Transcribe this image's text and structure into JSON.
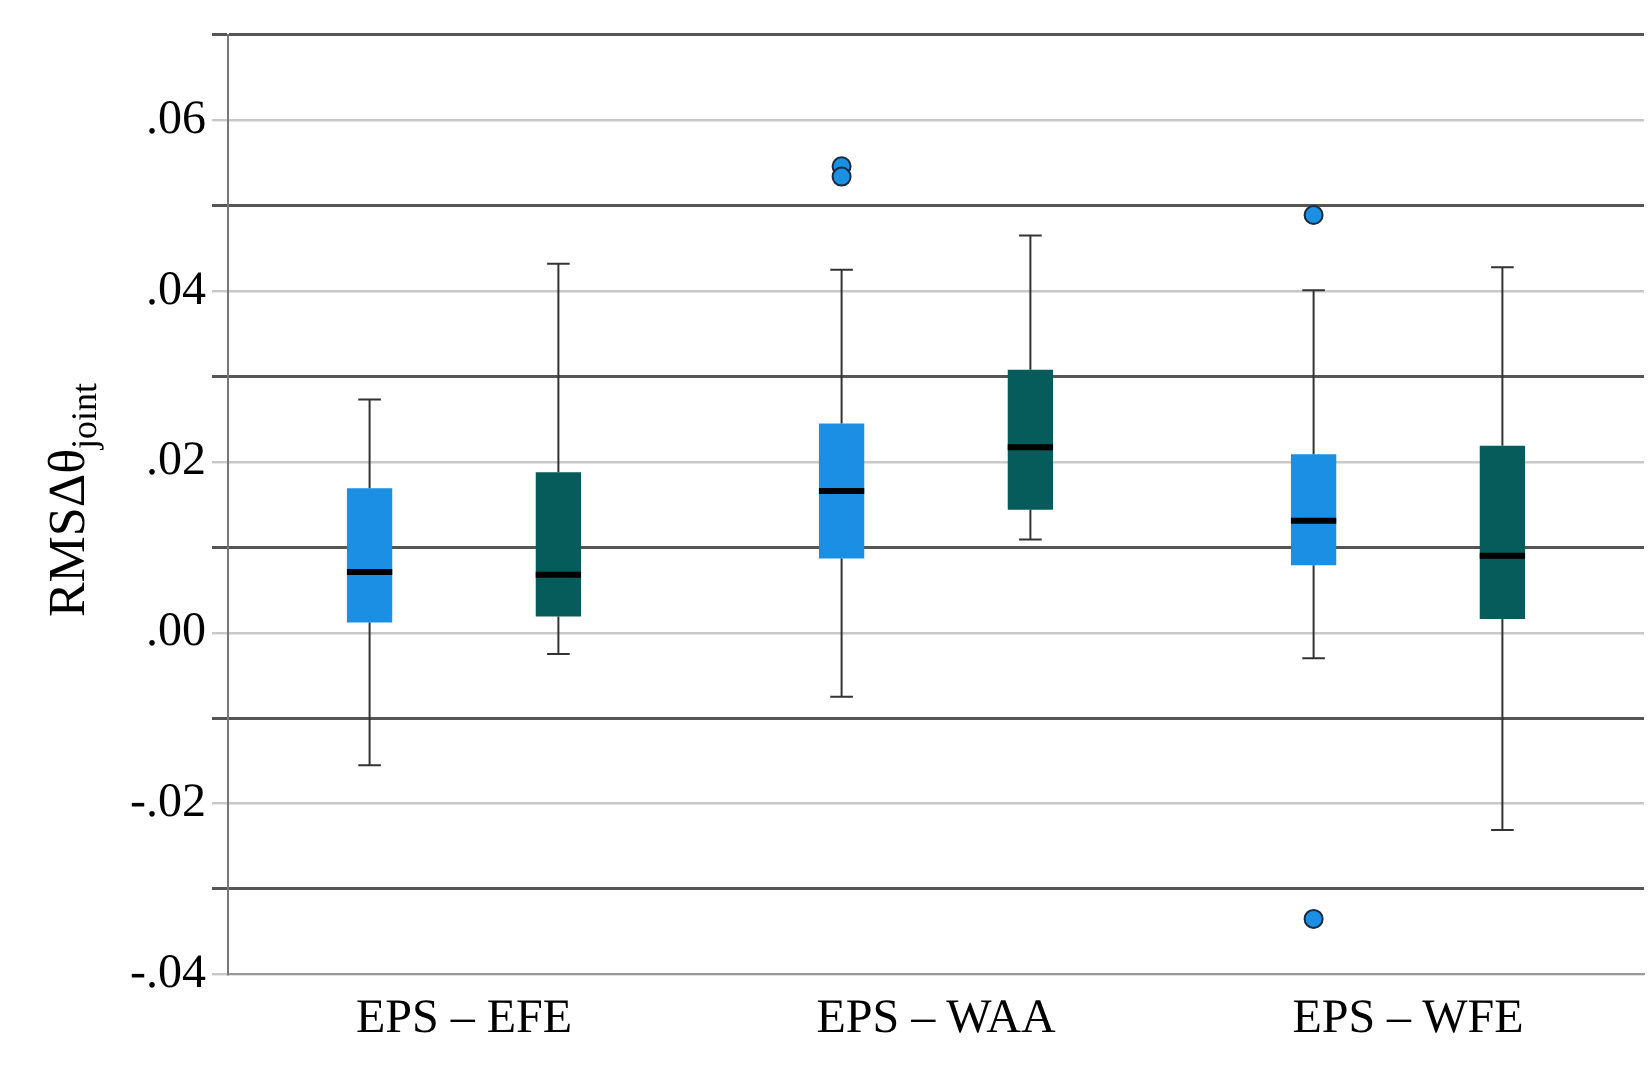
{
  "chart_data": {
    "type": "box",
    "ylabel": "RMSΔθ$_{joint}$",
    "categories": [
      "EPS – EFE",
      "EPS – WAA",
      "EPS – WFE"
    ],
    "series": [
      {
        "color": "#1a8fe3",
        "boxes": [
          {
            "low": -0.0155,
            "q1": 0.0012,
            "median": 0.0071,
            "q3": 0.0169,
            "high": 0.0273
          },
          {
            "low": -0.0075,
            "q1": 0.0087,
            "median": 0.0166,
            "q3": 0.0245,
            "high": 0.0425,
            "outliers": [
              0.0546,
              0.0534
            ]
          },
          {
            "low": -0.003,
            "q1": 0.0079,
            "median": 0.0131,
            "q3": 0.0209,
            "high": 0.0401,
            "outliers": [
              0.0489,
              -0.0335
            ]
          }
        ]
      },
      {
        "color": "#055c5a",
        "boxes": [
          {
            "low": -0.0025,
            "q1": 0.0019,
            "median": 0.0068,
            "q3": 0.0188,
            "high": 0.0432
          },
          {
            "low": 0.0109,
            "q1": 0.0144,
            "median": 0.0217,
            "q3": 0.0308,
            "high": 0.0465
          },
          {
            "low": -0.0231,
            "q1": 0.0016,
            "median": 0.009,
            "q3": 0.0219,
            "high": 0.0428
          }
        ]
      }
    ],
    "ylim": [
      -0.04,
      0.07
    ],
    "yticks": [
      {
        "value": -0.04,
        "label": "-.04"
      },
      {
        "value": -0.03,
        "label": null
      },
      {
        "value": -0.02,
        "label": "-.02"
      },
      {
        "value": -0.01,
        "label": null
      },
      {
        "value": 0,
        "label": ".00"
      },
      {
        "value": 0.01,
        "label": null
      },
      {
        "value": 0.02,
        "label": ".02"
      },
      {
        "value": 0.03,
        "label": null
      },
      {
        "value": 0.04,
        "label": ".04"
      },
      {
        "value": 0.05,
        "label": null
      },
      {
        "value": 0.06,
        "label": ".06"
      },
      {
        "value": 0.07,
        "label": null
      }
    ],
    "grid": "y",
    "legend": false
  }
}
